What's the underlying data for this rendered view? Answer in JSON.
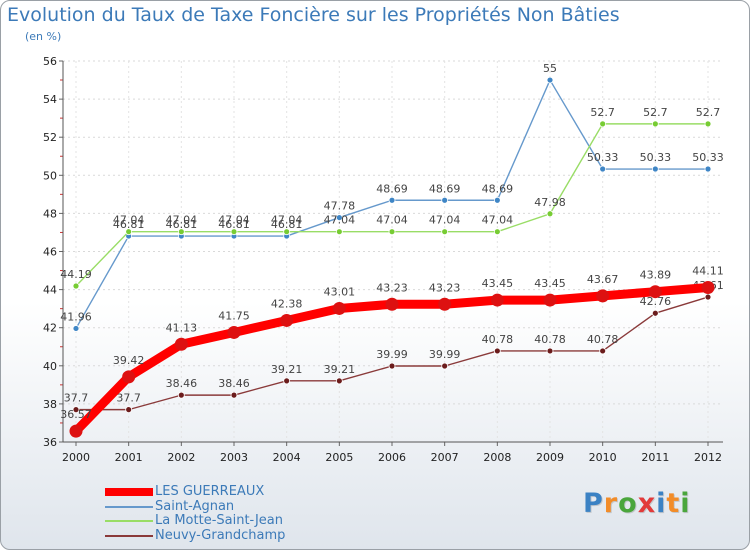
{
  "chart_data": {
    "type": "line",
    "title": "Evolution du Taux de Taxe Foncière sur les Propriétés Non Bâties",
    "ylabel": "(en %)",
    "xlabel": "",
    "categories": [
      "2000",
      "2001",
      "2002",
      "2003",
      "2004",
      "2005",
      "2006",
      "2007",
      "2008",
      "2009",
      "2010",
      "2011",
      "2012"
    ],
    "ylim": [
      36,
      56
    ],
    "yticks": [
      36,
      38,
      40,
      42,
      44,
      46,
      48,
      50,
      52,
      54,
      56
    ],
    "grid": true,
    "legend_position": "bottom-left",
    "series": [
      {
        "name": "Saint-Agnan",
        "color": "#6699cc",
        "dot": "#3f86c6",
        "values": [
          41.96,
          46.81,
          46.81,
          46.81,
          46.81,
          47.78,
          48.69,
          48.69,
          48.69,
          55,
          50.33,
          50.33,
          50.33
        ],
        "labels": [
          "41.96",
          "46.81",
          "46.81",
          "46.81",
          "46.81",
          "47.78",
          "48.69",
          "48.69",
          "48.69",
          "55",
          "50.33",
          "50.33",
          "50.33"
        ]
      },
      {
        "name": "La Motte-Saint-Jean",
        "color": "#99dd66",
        "dot": "#77cc33",
        "values": [
          44.19,
          47.04,
          47.04,
          47.04,
          47.04,
          47.04,
          47.04,
          47.04,
          47.04,
          47.98,
          52.7,
          52.7,
          52.7
        ],
        "labels": [
          "44.19",
          "47.04",
          "47.04",
          "47.04",
          "47.04",
          "47.04",
          "47.04",
          "47.04",
          "47.04",
          "47.98",
          "52.7",
          "52.7",
          "52.7"
        ]
      },
      {
        "name": "Neuvy-Grandchamp",
        "color": "#8a3a3a",
        "dot": "#6b1c1c",
        "values": [
          37.7,
          37.7,
          38.46,
          38.46,
          39.21,
          39.21,
          39.99,
          39.99,
          40.78,
          40.78,
          40.78,
          42.76,
          43.61
        ],
        "labels": [
          "37.7",
          "37.7",
          "38.46",
          "38.46",
          "39.21",
          "39.21",
          "39.99",
          "39.99",
          "40.78",
          "40.78",
          "40.78",
          "42.76",
          "43.61"
        ]
      },
      {
        "name": "LES GUERREAUX",
        "color": "#ff0000",
        "dot": "#dd1111",
        "values": [
          36.57,
          39.42,
          41.13,
          41.75,
          42.38,
          43.01,
          43.23,
          43.23,
          43.45,
          43.45,
          43.67,
          43.89,
          44.11
        ],
        "labels": [
          "36.57",
          "39.42",
          "41.13",
          "41.75",
          "42.38",
          "43.01",
          "43.23",
          "43.23",
          "43.45",
          "43.45",
          "43.67",
          "43.89",
          "44.11"
        ]
      }
    ],
    "legend": [
      {
        "name": "LES GUERREAUX",
        "color": "#ff0000"
      },
      {
        "name": "Saint-Agnan",
        "color": "#6699cc"
      },
      {
        "name": "La Motte-Saint-Jean",
        "color": "#99dd66"
      },
      {
        "name": "Neuvy-Grandchamp",
        "color": "#8a3a3a"
      }
    ]
  },
  "logo": {
    "letters": [
      "P",
      "r",
      "o",
      "x",
      "i",
      "t",
      "i"
    ],
    "colors": [
      "#3b82c4",
      "#f28c28",
      "#4aa63c",
      "#e23a3a",
      "#3b82c4",
      "#f28c28",
      "#4aa63c"
    ]
  }
}
